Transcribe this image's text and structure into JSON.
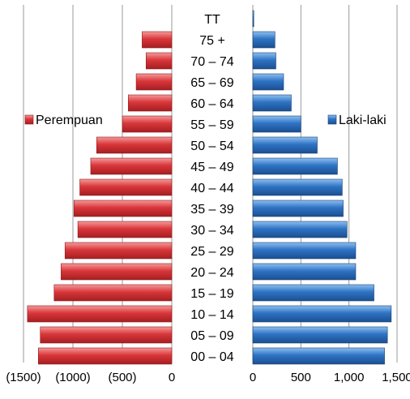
{
  "chart_data": {
    "type": "bar",
    "orientation": "horizontal",
    "layout": "population-pyramid",
    "categories": [
      "TT",
      "75 +",
      "70 – 74",
      "65 – 69",
      "60 – 64",
      "55 – 59",
      "50 – 54",
      "45 – 49",
      "40 – 44",
      "35 – 39",
      "30 – 34",
      "25 – 29",
      "20 – 24",
      "15 – 19",
      "10 – 14",
      "05 – 09",
      "00 – 04"
    ],
    "series": [
      {
        "name": "Perempuan",
        "side": "left",
        "color": "#d9363a",
        "values": [
          0,
          300,
          260,
          360,
          440,
          500,
          760,
          820,
          930,
          990,
          950,
          1080,
          1120,
          1190,
          1460,
          1330,
          1350
        ]
      },
      {
        "name": "Laki-laki",
        "side": "right",
        "color": "#2e73c4",
        "values": [
          10,
          230,
          240,
          320,
          400,
          500,
          670,
          880,
          930,
          940,
          980,
          1070,
          1070,
          1260,
          1440,
          1400,
          1370
        ]
      }
    ],
    "left_axis": {
      "range": [
        0,
        1500
      ],
      "ticks": [
        "(1500)",
        "(1000)",
        "(500)",
        "0"
      ]
    },
    "right_axis": {
      "range": [
        0,
        1500
      ],
      "ticks": [
        "0",
        "500",
        "1,000",
        "1,500"
      ]
    },
    "grid": true,
    "legend": [
      {
        "label": "Perempuan",
        "placement": "left-middle"
      },
      {
        "label": "Laki-laki",
        "placement": "right-middle"
      }
    ]
  }
}
